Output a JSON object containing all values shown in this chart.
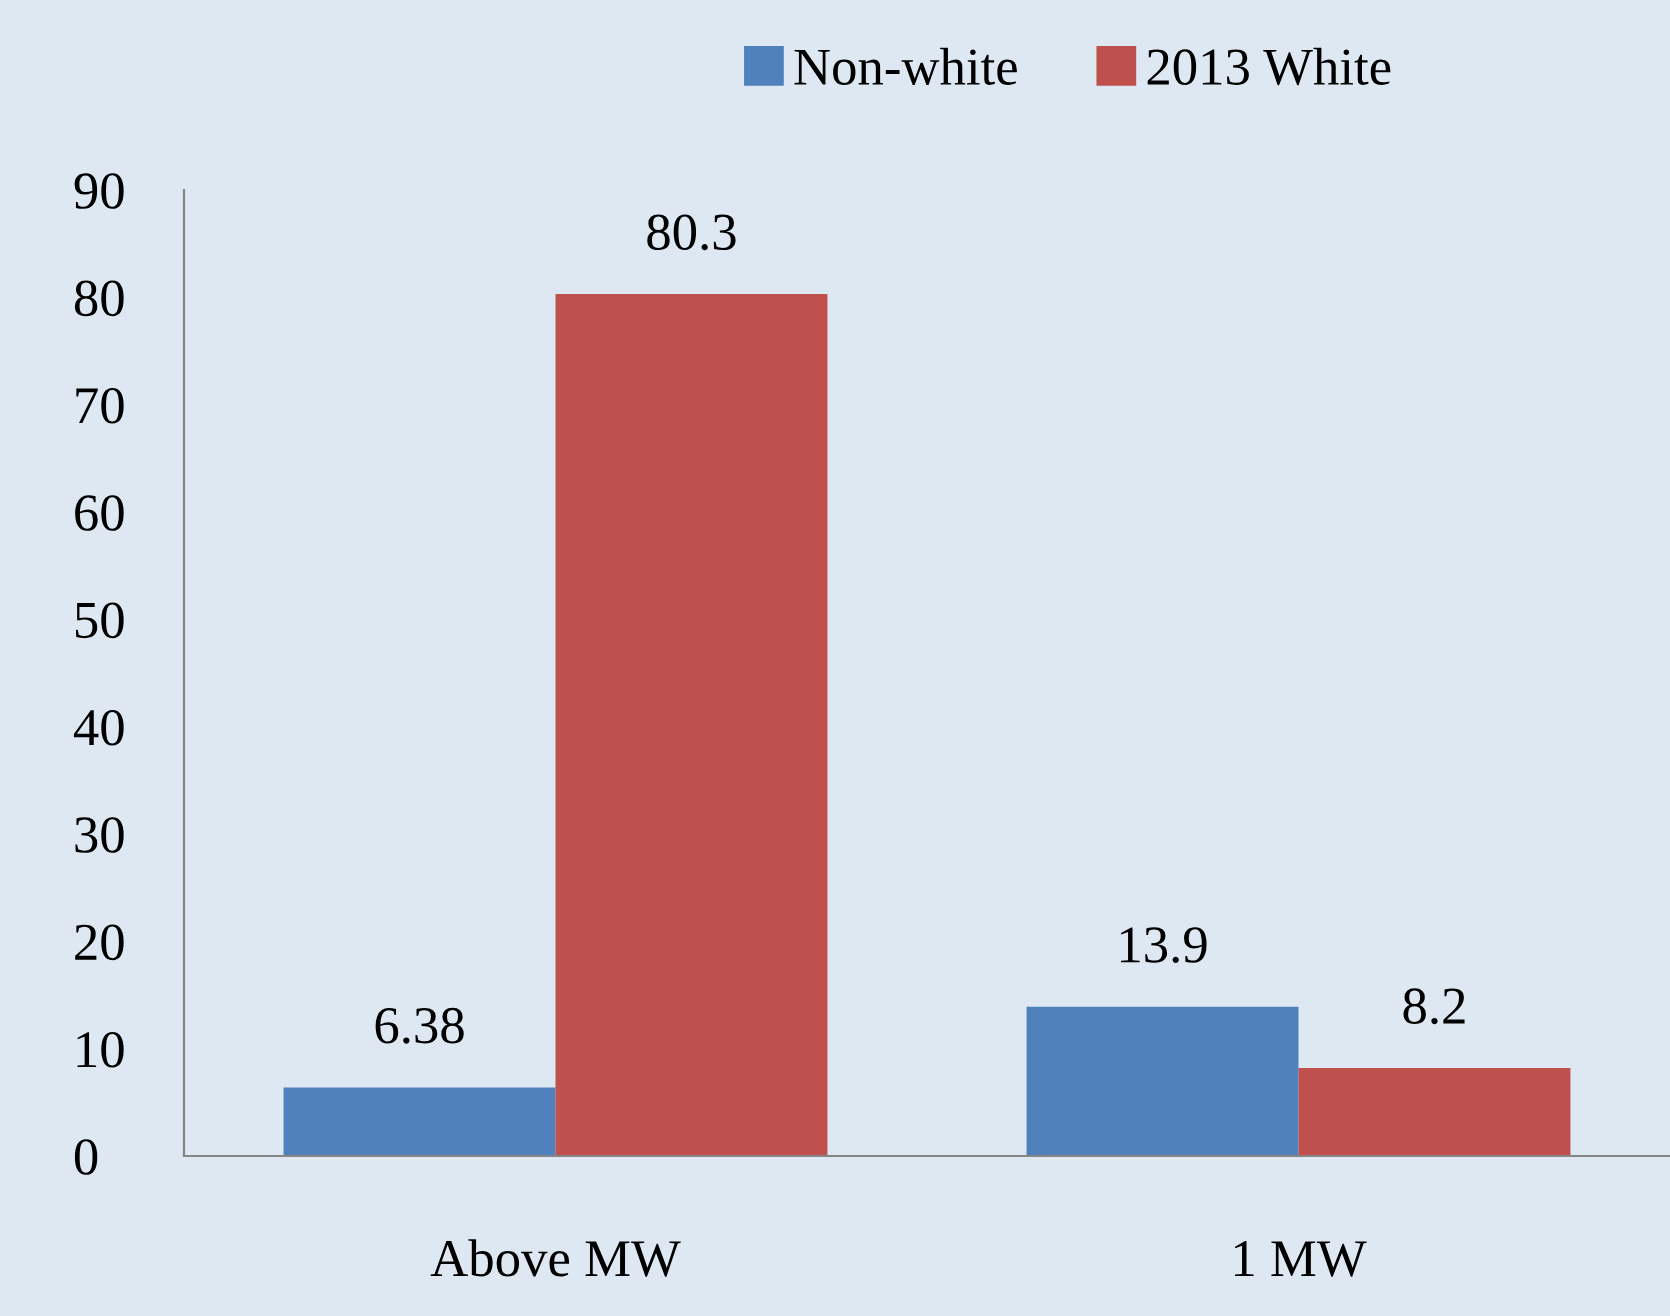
{
  "chart_data": {
    "type": "bar",
    "categories": [
      "Above MW",
      "1 MW"
    ],
    "series": [
      {
        "name": "Non-white",
        "color": "#4f81bd",
        "values": [
          6.38,
          13.9
        ]
      },
      {
        "name": "2013 White",
        "color": "#c0504d",
        "values": [
          80.3,
          8.2
        ]
      }
    ],
    "ylim": [
      0,
      90
    ],
    "yticks": [
      0,
      10,
      20,
      30,
      40,
      50,
      60,
      70,
      80,
      90
    ],
    "data_labels": true,
    "legend": "top",
    "grid": false
  }
}
